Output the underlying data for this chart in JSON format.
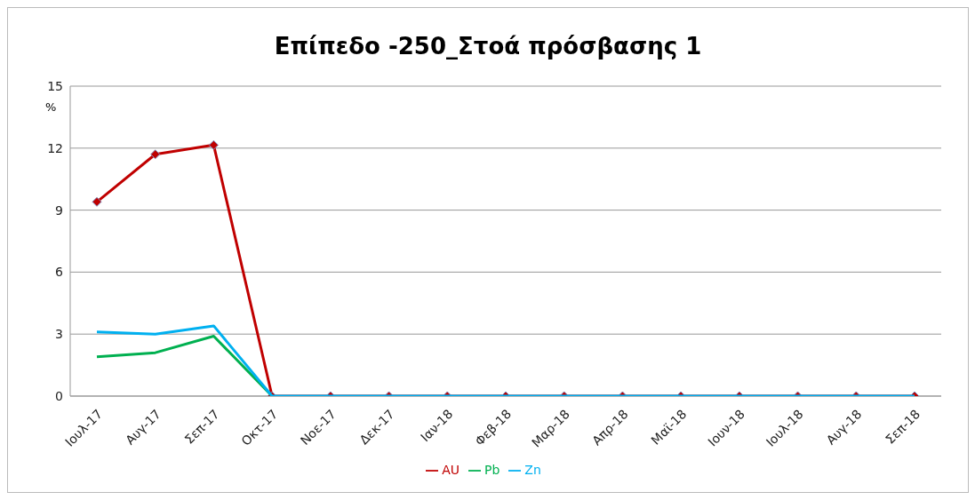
{
  "chart_data": {
    "type": "line",
    "title": "Επίπεδο -250_Στοά πρόσβασης 1",
    "ylabel": "%",
    "categories": [
      "Ιουλ-17",
      "Αυγ-17",
      "Σεπ-17",
      "Οκτ-17",
      "Νοε-17",
      "Δεκ-17",
      "Ιαν-18",
      "Φεβ-18",
      "Μαρ-18",
      "Απρ-18",
      "Μαϊ-18",
      "Ιουν-18",
      "Ιουλ-18",
      "Αυγ-18",
      "Σεπ-18"
    ],
    "series": [
      {
        "name": "AU",
        "color": "#c00000",
        "marker": "diamond",
        "values": [
          9.4,
          11.7,
          12.15,
          0,
          0,
          0,
          0,
          0,
          0,
          0,
          0,
          0,
          0,
          0,
          0
        ]
      },
      {
        "name": "Pb",
        "color": "#00b050",
        "marker": "none",
        "values": [
          1.9,
          2.1,
          2.9,
          0,
          null,
          null,
          null,
          null,
          null,
          null,
          null,
          null,
          null,
          null,
          null
        ]
      },
      {
        "name": "Zn",
        "color": "#00b0f0",
        "marker": "none",
        "values": [
          3.1,
          3.0,
          3.4,
          0,
          0,
          0,
          0,
          0,
          0,
          0,
          0,
          0,
          0,
          0,
          0
        ]
      }
    ],
    "ylim": [
      0,
      15
    ],
    "yticks": [
      0,
      3,
      6,
      9,
      12,
      15
    ],
    "grid": "y",
    "legend": "bottom"
  }
}
